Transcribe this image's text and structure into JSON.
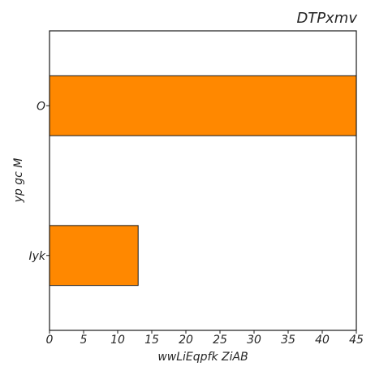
{
  "chart_data": {
    "type": "bar",
    "orientation": "horizontal",
    "title": "DTPxmv",
    "xlabel": "wwLiEqpfk ZiAB",
    "ylabel": "yp gc M",
    "categories": [
      "O",
      "Iyk"
    ],
    "values": [
      45,
      13
    ],
    "xlim": [
      0,
      45
    ],
    "xticks": [
      0,
      5,
      10,
      15,
      20,
      25,
      30,
      35,
      40,
      45
    ],
    "grid": false,
    "bar_color": "#ff8800"
  }
}
